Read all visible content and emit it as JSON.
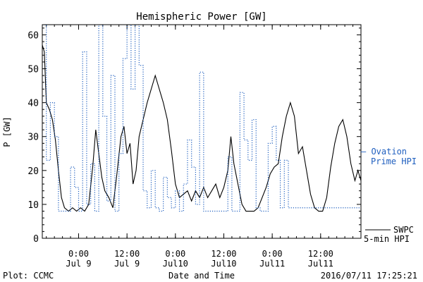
{
  "chart_data": {
    "type": "line",
    "title": "Hemispheric Power [GW]",
    "ylabel": "P [GW]",
    "xlabel": "Date and Time",
    "ylim": [
      0,
      63
    ],
    "y_ticks": [
      0,
      10,
      20,
      30,
      40,
      50,
      60
    ],
    "xlim": [
      "2016-07-08 15:00",
      "2016-07-11 22:00"
    ],
    "x_ticks": [
      {
        "time": "2016-07-09 00:00",
        "line1": "0:00",
        "line2": "Jul 9"
      },
      {
        "time": "2016-07-09 12:00",
        "line1": "12:00",
        "line2": "Jul 9"
      },
      {
        "time": "2016-07-10 00:00",
        "line1": "0:00",
        "line2": "Jul10"
      },
      {
        "time": "2016-07-10 12:00",
        "line1": "12:00",
        "line2": "Jul10"
      },
      {
        "time": "2016-07-11 00:00",
        "line1": "0:00",
        "line2": "Jul11"
      },
      {
        "time": "2016-07-11 12:00",
        "line1": "12:00",
        "line2": "Jul11"
      }
    ],
    "series": [
      {
        "name": "SWPC 5-min HPI",
        "label_line1": "SWPC",
        "label_line2": "5-min HPI",
        "label_prefix": "—",
        "color": "#000000",
        "style": "solid",
        "points": [
          [
            "2016-07-08 15:00",
            57
          ],
          [
            "2016-07-08 15:30",
            55
          ],
          [
            "2016-07-08 16:00",
            40
          ],
          [
            "2016-07-08 16:45",
            38
          ],
          [
            "2016-07-08 17:30",
            35
          ],
          [
            "2016-07-08 18:15",
            29
          ],
          [
            "2016-07-08 19:00",
            20
          ],
          [
            "2016-07-08 19:45",
            12
          ],
          [
            "2016-07-08 20:30",
            9
          ],
          [
            "2016-07-08 21:30",
            8
          ],
          [
            "2016-07-08 22:30",
            9
          ],
          [
            "2016-07-08 23:30",
            8
          ],
          [
            "2016-07-09 00:30",
            9
          ],
          [
            "2016-07-09 01:30",
            8
          ],
          [
            "2016-07-09 02:30",
            10
          ],
          [
            "2016-07-09 03:30",
            21
          ],
          [
            "2016-07-09 04:15",
            32
          ],
          [
            "2016-07-09 05:00",
            25
          ],
          [
            "2016-07-09 05:45",
            18
          ],
          [
            "2016-07-09 06:30",
            14
          ],
          [
            "2016-07-09 07:30",
            12
          ],
          [
            "2016-07-09 08:30",
            9
          ],
          [
            "2016-07-09 09:30",
            19
          ],
          [
            "2016-07-09 10:30",
            30
          ],
          [
            "2016-07-09 11:15",
            33
          ],
          [
            "2016-07-09 12:00",
            25
          ],
          [
            "2016-07-09 12:45",
            28
          ],
          [
            "2016-07-09 13:30",
            16
          ],
          [
            "2016-07-09 14:15",
            20
          ],
          [
            "2016-07-09 15:00",
            30
          ],
          [
            "2016-07-09 16:00",
            35
          ],
          [
            "2016-07-09 17:00",
            40
          ],
          [
            "2016-07-09 18:00",
            44
          ],
          [
            "2016-07-09 19:00",
            48
          ],
          [
            "2016-07-09 20:00",
            44
          ],
          [
            "2016-07-09 21:00",
            40
          ],
          [
            "2016-07-09 22:00",
            35
          ],
          [
            "2016-07-09 23:00",
            26
          ],
          [
            "2016-07-10 00:00",
            16
          ],
          [
            "2016-07-10 01:00",
            12
          ],
          [
            "2016-07-10 02:00",
            13
          ],
          [
            "2016-07-10 03:00",
            14
          ],
          [
            "2016-07-10 04:00",
            11
          ],
          [
            "2016-07-10 05:00",
            14
          ],
          [
            "2016-07-10 06:00",
            12
          ],
          [
            "2016-07-10 07:00",
            15
          ],
          [
            "2016-07-10 08:00",
            12
          ],
          [
            "2016-07-10 09:00",
            14
          ],
          [
            "2016-07-10 10:00",
            16
          ],
          [
            "2016-07-10 11:00",
            12
          ],
          [
            "2016-07-10 12:00",
            15
          ],
          [
            "2016-07-10 13:00",
            20
          ],
          [
            "2016-07-10 13:45",
            30
          ],
          [
            "2016-07-10 14:30",
            22
          ],
          [
            "2016-07-10 15:30",
            16
          ],
          [
            "2016-07-10 16:30",
            10
          ],
          [
            "2016-07-10 17:30",
            8
          ],
          [
            "2016-07-10 18:30",
            8
          ],
          [
            "2016-07-10 19:30",
            8
          ],
          [
            "2016-07-10 20:30",
            9
          ],
          [
            "2016-07-10 21:30",
            12
          ],
          [
            "2016-07-10 22:30",
            15
          ],
          [
            "2016-07-10 23:30",
            19
          ],
          [
            "2016-07-11 00:30",
            21
          ],
          [
            "2016-07-11 01:30",
            22
          ],
          [
            "2016-07-11 02:30",
            30
          ],
          [
            "2016-07-11 03:30",
            36
          ],
          [
            "2016-07-11 04:30",
            40
          ],
          [
            "2016-07-11 05:30",
            36
          ],
          [
            "2016-07-11 06:30",
            25
          ],
          [
            "2016-07-11 07:30",
            27
          ],
          [
            "2016-07-11 08:30",
            20
          ],
          [
            "2016-07-11 09:30",
            13
          ],
          [
            "2016-07-11 10:30",
            9
          ],
          [
            "2016-07-11 11:30",
            8
          ],
          [
            "2016-07-11 12:30",
            8
          ],
          [
            "2016-07-11 13:30",
            12
          ],
          [
            "2016-07-11 14:30",
            21
          ],
          [
            "2016-07-11 15:30",
            28
          ],
          [
            "2016-07-11 16:30",
            33
          ],
          [
            "2016-07-11 17:30",
            35
          ],
          [
            "2016-07-11 18:30",
            30
          ],
          [
            "2016-07-11 19:30",
            22
          ],
          [
            "2016-07-11 20:30",
            17
          ],
          [
            "2016-07-11 21:15",
            20
          ],
          [
            "2016-07-11 22:00",
            17
          ]
        ]
      },
      {
        "name": "Ovation Prime HPI",
        "label_line1": "— Ovation",
        "label_line2": "Prime HPI",
        "color": "#1f5fbf",
        "style": "dotted-step",
        "points": [
          [
            "2016-07-08 15:00",
            63
          ],
          [
            "2016-07-08 16:00",
            23
          ],
          [
            "2016-07-08 17:00",
            40
          ],
          [
            "2016-07-08 18:00",
            30
          ],
          [
            "2016-07-08 19:00",
            8
          ],
          [
            "2016-07-08 22:00",
            21
          ],
          [
            "2016-07-08 23:00",
            15
          ],
          [
            "2016-07-09 00:00",
            8
          ],
          [
            "2016-07-09 01:00",
            55
          ],
          [
            "2016-07-09 02:00",
            10
          ],
          [
            "2016-07-09 03:00",
            22
          ],
          [
            "2016-07-09 04:00",
            8
          ],
          [
            "2016-07-09 05:00",
            63
          ],
          [
            "2016-07-09 06:00",
            36
          ],
          [
            "2016-07-09 07:00",
            11
          ],
          [
            "2016-07-09 08:00",
            48
          ],
          [
            "2016-07-09 09:00",
            8
          ],
          [
            "2016-07-09 10:00",
            25
          ],
          [
            "2016-07-09 11:00",
            53
          ],
          [
            "2016-07-09 12:00",
            63
          ],
          [
            "2016-07-09 13:00",
            44
          ],
          [
            "2016-07-09 14:00",
            63
          ],
          [
            "2016-07-09 15:00",
            51
          ],
          [
            "2016-07-09 16:00",
            14
          ],
          [
            "2016-07-09 17:00",
            9
          ],
          [
            "2016-07-09 18:00",
            20
          ],
          [
            "2016-07-09 19:00",
            9
          ],
          [
            "2016-07-09 20:00",
            8
          ],
          [
            "2016-07-09 21:00",
            18
          ],
          [
            "2016-07-09 22:00",
            12
          ],
          [
            "2016-07-09 23:00",
            9
          ],
          [
            "2016-07-10 00:00",
            14
          ],
          [
            "2016-07-10 01:00",
            8
          ],
          [
            "2016-07-10 02:00",
            16
          ],
          [
            "2016-07-10 03:00",
            29
          ],
          [
            "2016-07-10 04:00",
            21
          ],
          [
            "2016-07-10 05:00",
            10
          ],
          [
            "2016-07-10 06:00",
            49
          ],
          [
            "2016-07-10 07:00",
            8
          ],
          [
            "2016-07-10 08:00",
            8
          ],
          [
            "2016-07-10 13:00",
            24
          ],
          [
            "2016-07-10 14:00",
            8
          ],
          [
            "2016-07-10 15:00",
            8
          ],
          [
            "2016-07-10 16:00",
            43
          ],
          [
            "2016-07-10 17:00",
            29
          ],
          [
            "2016-07-10 18:00",
            23
          ],
          [
            "2016-07-10 19:00",
            35
          ],
          [
            "2016-07-10 20:00",
            9
          ],
          [
            "2016-07-10 21:00",
            8
          ],
          [
            "2016-07-10 22:00",
            8
          ],
          [
            "2016-07-10 23:00",
            28
          ],
          [
            "2016-07-11 00:00",
            33
          ],
          [
            "2016-07-11 01:00",
            23
          ],
          [
            "2016-07-11 02:00",
            9
          ],
          [
            "2016-07-11 03:00",
            23
          ],
          [
            "2016-07-11 04:00",
            9
          ]
        ]
      }
    ]
  },
  "footer": {
    "left": "Plot: CCMC",
    "right": "2016/07/11 17:25:21"
  }
}
